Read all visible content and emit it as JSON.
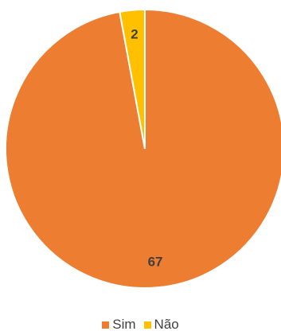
{
  "chart_data": {
    "type": "pie",
    "title": "",
    "categories": [
      "Sim",
      "Não"
    ],
    "values": [
      67,
      2
    ],
    "data_labels": [
      "67",
      "2"
    ],
    "colors": [
      "#ED7D31",
      "#FFC000"
    ],
    "legend_placement": "bottom"
  },
  "legend": {
    "items": [
      {
        "label": "Sim",
        "color": "#ED7D31"
      },
      {
        "label": "Não",
        "color": "#FFC000"
      }
    ]
  }
}
